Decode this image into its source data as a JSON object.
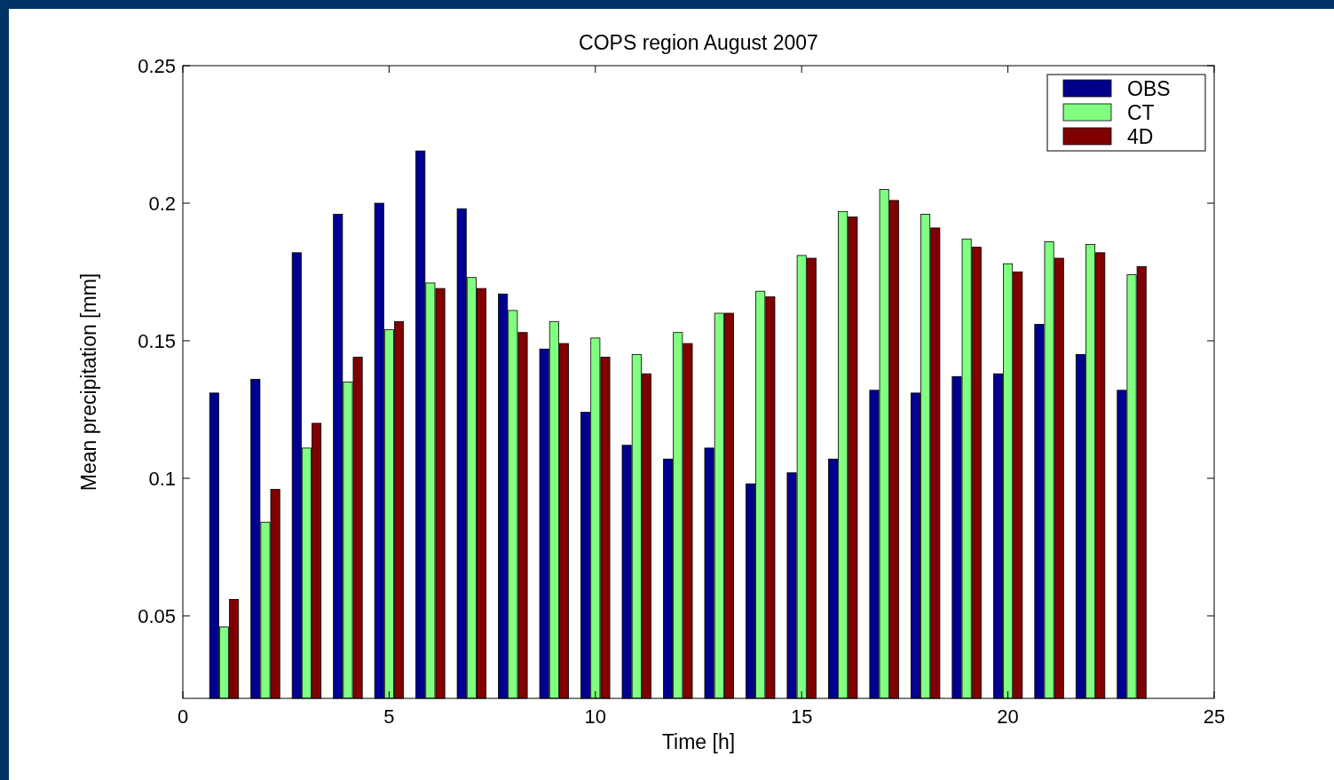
{
  "chart_data": {
    "type": "bar",
    "title": "COPS region August 2007",
    "xlabel": "Time [h]",
    "ylabel": "Mean precipitation [mm]",
    "x": [
      1,
      2,
      3,
      4,
      5,
      6,
      7,
      8,
      9,
      10,
      11,
      12,
      13,
      14,
      15,
      16,
      17,
      18,
      19,
      20,
      21,
      22,
      23
    ],
    "series": [
      {
        "name": "OBS",
        "color": "#00008f",
        "values": [
          0.131,
          0.136,
          0.182,
          0.196,
          0.2,
          0.219,
          0.198,
          0.167,
          0.147,
          0.124,
          0.112,
          0.107,
          0.111,
          0.098,
          0.102,
          0.107,
          0.132,
          0.131,
          0.137,
          0.138,
          0.156,
          0.145,
          0.132
        ]
      },
      {
        "name": "CT",
        "color": "#80ff80",
        "values": [
          0.046,
          0.084,
          0.111,
          0.135,
          0.154,
          0.171,
          0.173,
          0.161,
          0.157,
          0.151,
          0.145,
          0.153,
          0.16,
          0.168,
          0.181,
          0.197,
          0.205,
          0.196,
          0.187,
          0.178,
          0.186,
          0.185,
          0.174
        ]
      },
      {
        "name": "4D",
        "color": "#800000",
        "values": [
          0.056,
          0.096,
          0.12,
          0.144,
          0.157,
          0.169,
          0.169,
          0.153,
          0.149,
          0.144,
          0.138,
          0.149,
          0.16,
          0.166,
          0.18,
          0.195,
          0.201,
          0.191,
          0.184,
          0.175,
          0.18,
          0.182,
          0.177
        ]
      }
    ],
    "xlim": [
      0,
      25
    ],
    "xticks": [
      0,
      5,
      10,
      15,
      20,
      25
    ],
    "ylim": [
      0.02,
      0.25
    ],
    "yticks": [
      {
        "value": 0.05,
        "label": "0.05"
      },
      {
        "value": 0.1,
        "label": "0.1"
      },
      {
        "value": 0.15,
        "label": "0.15"
      },
      {
        "value": 0.2,
        "label": "0.2"
      },
      {
        "value": 0.25,
        "label": "0.25"
      }
    ],
    "legend": "top right",
    "grid": false
  }
}
